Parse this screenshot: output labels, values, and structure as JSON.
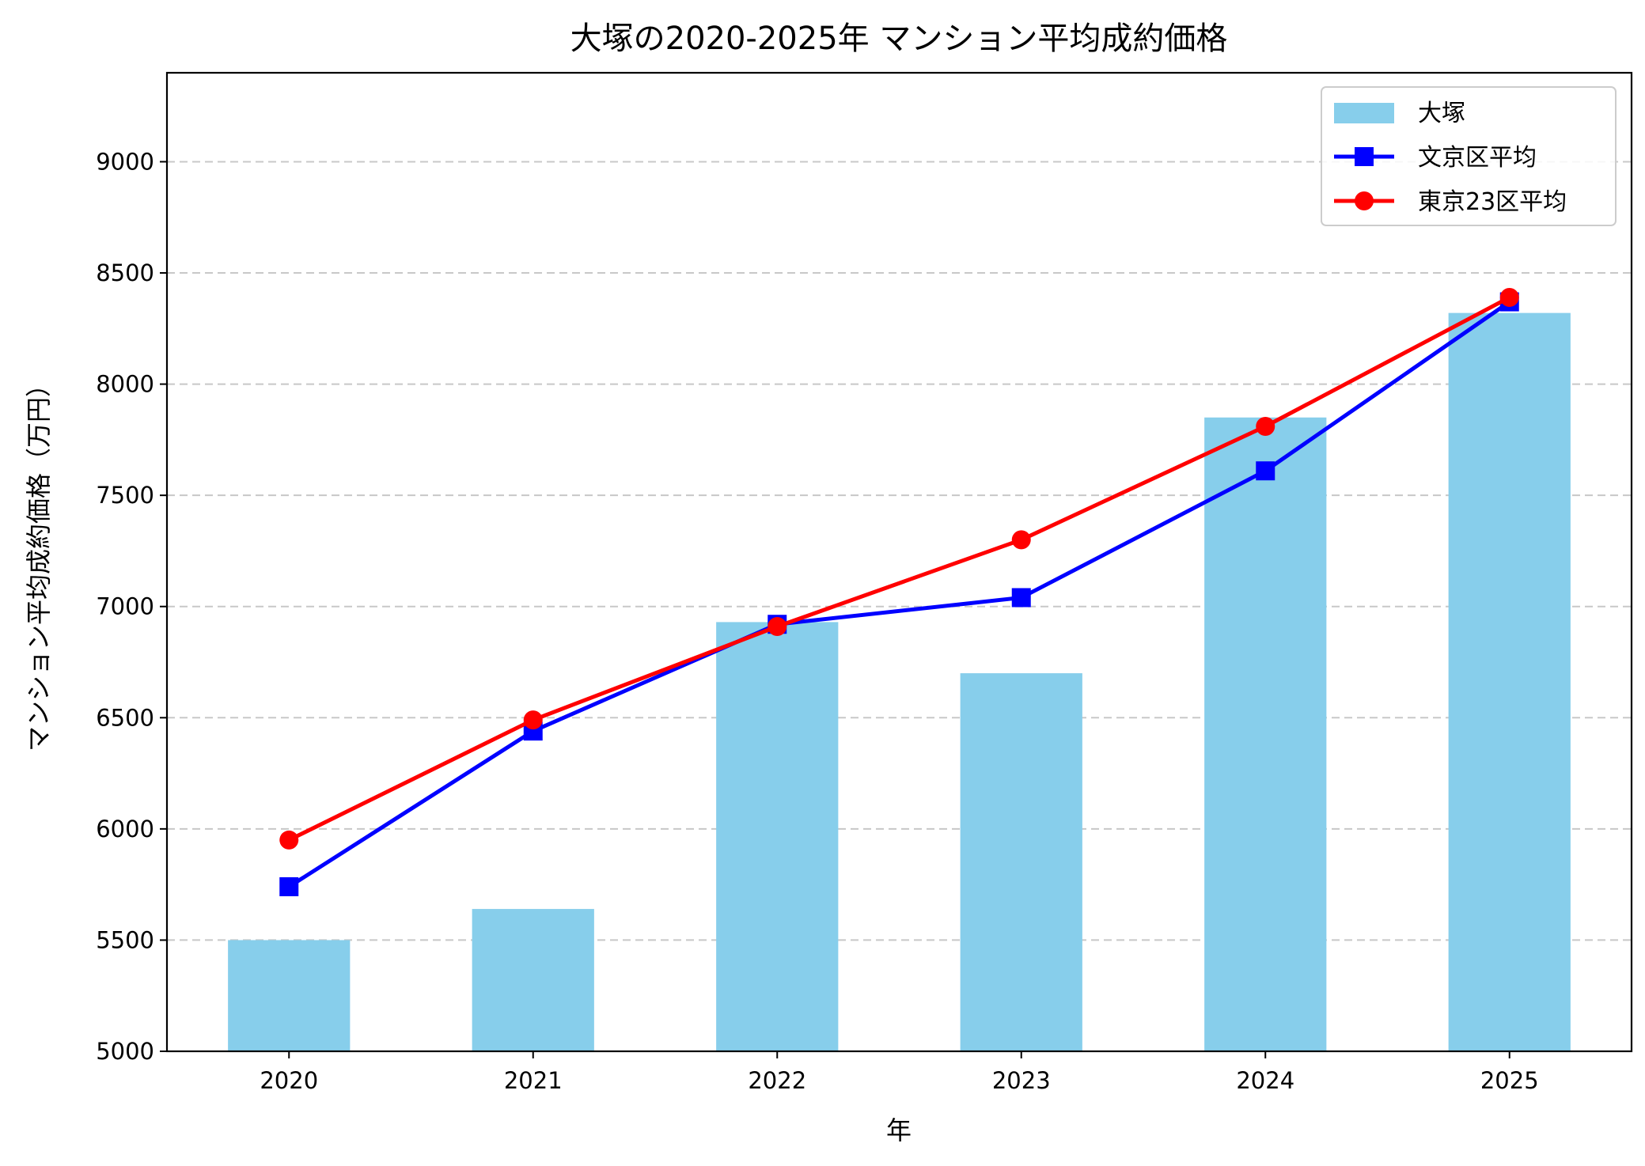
{
  "chart_data": {
    "type": "bar",
    "title": "大塚の2020-2025年 マンション平均成約価格",
    "xlabel": "年",
    "ylabel": "マンション平均成約価格（万円）",
    "categories": [
      "2020",
      "2021",
      "2022",
      "2023",
      "2024",
      "2025"
    ],
    "ylim": [
      5000,
      9400
    ],
    "yticks": [
      5000,
      5500,
      6000,
      6500,
      7000,
      7500,
      8000,
      8500,
      9000
    ],
    "grid": "y, dashed",
    "legend_placement": "top-right",
    "series": [
      {
        "name": "大塚",
        "type": "bar",
        "color": "#87CEEB",
        "values": [
          5500,
          5640,
          6930,
          6700,
          7850,
          8320
        ]
      },
      {
        "name": "文京区平均",
        "type": "line",
        "marker": "square",
        "color": "#0000FF",
        "values": [
          5740,
          6440,
          6920,
          7040,
          7610,
          8370
        ]
      },
      {
        "name": "東京23区平均",
        "type": "line",
        "marker": "circle",
        "color": "#FF0000",
        "values": [
          5950,
          6490,
          6910,
          7300,
          7810,
          8390
        ]
      }
    ]
  }
}
